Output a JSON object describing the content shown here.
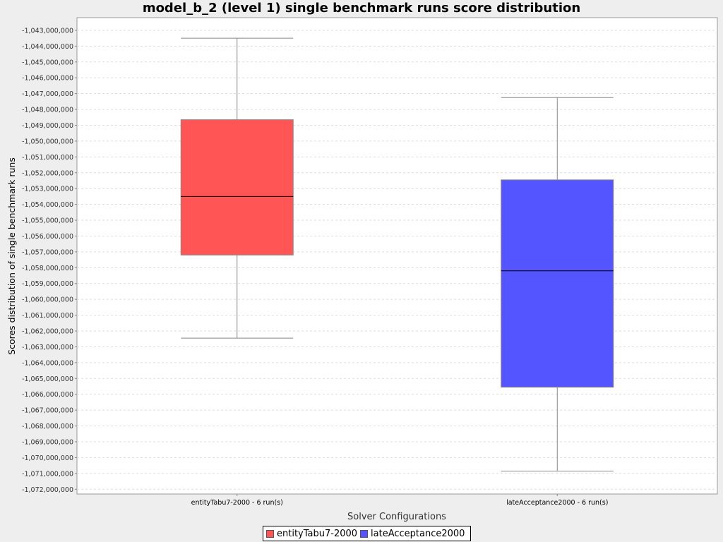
{
  "chart_data": {
    "type": "box",
    "title": "model_b_2 (level 1) single benchmark runs score distribution",
    "xlabel": "Solver Configurations",
    "ylabel": "Scores distribution of single benchmark runs",
    "ylim": [
      -1072300000,
      -1042200000
    ],
    "y_ticks": [
      -1043000000,
      -1044000000,
      -1045000000,
      -1046000000,
      -1047000000,
      -1048000000,
      -1049000000,
      -1050000000,
      -1051000000,
      -1052000000,
      -1053000000,
      -1054000000,
      -1055000000,
      -1056000000,
      -1057000000,
      -1058000000,
      -1059000000,
      -1060000000,
      -1061000000,
      -1062000000,
      -1063000000,
      -1064000000,
      -1065000000,
      -1066000000,
      -1067000000,
      -1068000000,
      -1069000000,
      -1070000000,
      -1071000000,
      -1072000000
    ],
    "grid": true,
    "legend_position": "bottom",
    "categories": [
      "entityTabu7-2000 - 6 run(s)",
      "lateAcceptance2000 - 6 run(s)"
    ],
    "series": [
      {
        "name": "entityTabu7-2000",
        "color": "#ff5555",
        "whisker_high": -1043500000,
        "q3": -1048650000,
        "median": -1053500000,
        "q1": -1057200000,
        "whisker_low": -1062450000
      },
      {
        "name": "lateAcceptance2000",
        "color": "#5555ff",
        "whisker_high": -1047250000,
        "q3": -1052450000,
        "median": -1058200000,
        "q1": -1065550000,
        "whisker_low": -1070850000
      }
    ]
  }
}
